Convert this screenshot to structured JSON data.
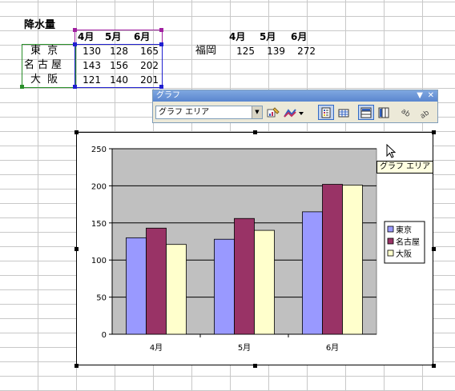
{
  "sheet": {
    "title": "降水量",
    "months": [
      "4月",
      "5月",
      "6月"
    ],
    "rows": [
      {
        "city": "東 京",
        "values": [
          "130",
          "128",
          "165"
        ]
      },
      {
        "city": "名古屋",
        "values": [
          "143",
          "156",
          "202"
        ]
      },
      {
        "city": "大 阪",
        "values": [
          "121",
          "140",
          "201"
        ]
      }
    ],
    "side_table": {
      "months": [
        "4月",
        "5月",
        "6月"
      ],
      "city": "福岡",
      "values": [
        "125",
        "139",
        "272"
      ]
    }
  },
  "toolbar": {
    "title": "グラフ",
    "combo_value": "グラフ エリア",
    "icons": [
      "format-chart-area-icon",
      "chart-type-icon",
      "legend-icon",
      "data-table-icon",
      "by-row-icon",
      "by-column-icon",
      "angle-text-down-icon",
      "angle-text-up-icon"
    ]
  },
  "tooltip": "グラフ エリア",
  "chart_data": {
    "type": "bar",
    "categories": [
      "4月",
      "5月",
      "6月"
    ],
    "series": [
      {
        "name": "東京",
        "values": [
          130,
          128,
          165
        ],
        "color": "#9999ff"
      },
      {
        "name": "名古屋",
        "values": [
          143,
          156,
          202
        ],
        "color": "#993366"
      },
      {
        "name": "大阪",
        "values": [
          121,
          140,
          201
        ],
        "color": "#ffffcc"
      }
    ],
    "ylim": [
      0,
      250
    ],
    "yticks": [
      0,
      50,
      100,
      150,
      200,
      250
    ],
    "grid": true,
    "plot_background": "#c0c0c0",
    "legend": "right"
  }
}
